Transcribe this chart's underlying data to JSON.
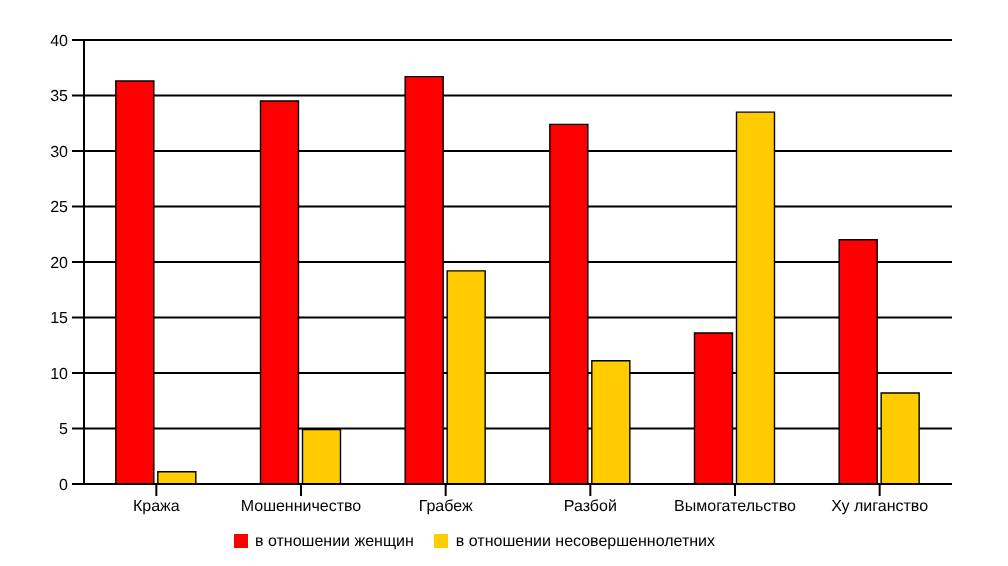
{
  "chart_data": {
    "type": "bar",
    "categories": [
      "Кража",
      "Мошенничество",
      "Грабеж",
      "Разбой",
      "Вымогательство",
      "Ху лиганство"
    ],
    "series": [
      {
        "name": "в отношении женщин",
        "color": "#ff0000",
        "values": [
          36.3,
          34.5,
          36.7,
          32.4,
          13.6,
          22
        ]
      },
      {
        "name": "в отношении несовершеннолетних",
        "color": "#ffcc00",
        "values": [
          1.1,
          4.9,
          19.2,
          11.1,
          33.5,
          8.2
        ]
      }
    ],
    "ylim": [
      0,
      40
    ],
    "yticks": [
      0,
      5,
      10,
      15,
      20,
      25,
      30,
      35,
      40
    ],
    "grid": "y",
    "legend": "bottom"
  }
}
